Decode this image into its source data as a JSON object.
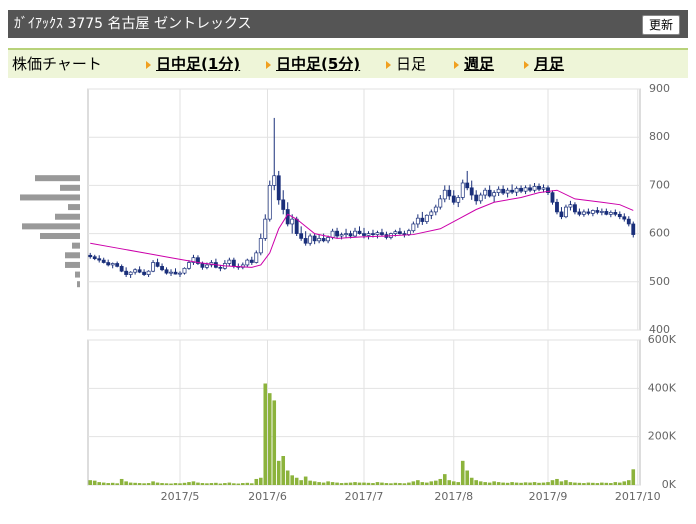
{
  "header": {
    "title": "ｶﾞｲｱｯｸｽ 3775 名古屋 ゼントレックス",
    "button": "更新"
  },
  "tabs": {
    "label": "株価チャート",
    "items": [
      "日中足(1分)",
      "日中足(5分)",
      "日足",
      "週足",
      "月足"
    ]
  },
  "chart_data": {
    "type": "candlestick",
    "up_color": "#ffffff",
    "down_color": "#1a2f7a",
    "ma_color": "#cc00aa",
    "volume_color": "#8cb33c",
    "profile_color": "#999999",
    "grid": true,
    "xlim": [
      -0.5,
      122.5
    ],
    "xticks": [
      {
        "value": 20,
        "label": "2017/5"
      },
      {
        "value": 39.5,
        "label": "2017/6"
      },
      {
        "value": 61,
        "label": "2017/7"
      },
      {
        "value": 81,
        "label": "2017/8"
      },
      {
        "value": 102,
        "label": "2017/9"
      },
      {
        "value": 122,
        "label": "2017/10"
      }
    ],
    "ylim": [
      400,
      900
    ],
    "yticks": [
      400,
      500,
      600,
      700,
      800,
      900
    ],
    "candles": [
      [
        555,
        560,
        548,
        552
      ],
      [
        552,
        556,
        545,
        548
      ],
      [
        548,
        555,
        540,
        545
      ],
      [
        545,
        550,
        538,
        540
      ],
      [
        540,
        546,
        532,
        535
      ],
      [
        535,
        540,
        528,
        538
      ],
      [
        538,
        542,
        530,
        532
      ],
      [
        532,
        536,
        520,
        522
      ],
      [
        522,
        530,
        510,
        515
      ],
      [
        515,
        522,
        508,
        520
      ],
      [
        520,
        528,
        515,
        525
      ],
      [
        525,
        532,
        518,
        520
      ],
      [
        520,
        526,
        512,
        515
      ],
      [
        515,
        524,
        510,
        522
      ],
      [
        522,
        545,
        520,
        540
      ],
      [
        540,
        548,
        530,
        532
      ],
      [
        532,
        538,
        522,
        525
      ],
      [
        525,
        530,
        515,
        518
      ],
      [
        518,
        526,
        512,
        520
      ],
      [
        520,
        528,
        515,
        516
      ],
      [
        516,
        522,
        510,
        518
      ],
      [
        518,
        530,
        515,
        528
      ],
      [
        528,
        545,
        525,
        540
      ],
      [
        540,
        556,
        535,
        550
      ],
      [
        550,
        555,
        535,
        538
      ],
      [
        538,
        542,
        525,
        530
      ],
      [
        530,
        540,
        526,
        535
      ],
      [
        535,
        545,
        530,
        540
      ],
      [
        540,
        548,
        528,
        530
      ],
      [
        530,
        535,
        522,
        528
      ],
      [
        528,
        545,
        525,
        538
      ],
      [
        538,
        550,
        532,
        545
      ],
      [
        545,
        550,
        528,
        532
      ],
      [
        532,
        538,
        525,
        530
      ],
      [
        530,
        540,
        526,
        535
      ],
      [
        535,
        548,
        530,
        545
      ],
      [
        545,
        552,
        535,
        540
      ],
      [
        540,
        565,
        538,
        560
      ],
      [
        560,
        600,
        555,
        590
      ],
      [
        590,
        640,
        585,
        630
      ],
      [
        630,
        710,
        625,
        700
      ],
      [
        700,
        840,
        690,
        720
      ],
      [
        720,
        730,
        660,
        670
      ],
      [
        670,
        690,
        640,
        650
      ],
      [
        650,
        665,
        615,
        620
      ],
      [
        620,
        640,
        600,
        630
      ],
      [
        630,
        635,
        595,
        600
      ],
      [
        600,
        615,
        585,
        590
      ],
      [
        590,
        605,
        575,
        580
      ],
      [
        580,
        600,
        575,
        595
      ],
      [
        595,
        600,
        578,
        585
      ],
      [
        585,
        598,
        580,
        590
      ],
      [
        590,
        600,
        582,
        585
      ],
      [
        585,
        596,
        580,
        592
      ],
      [
        592,
        610,
        588,
        605
      ],
      [
        605,
        612,
        590,
        595
      ],
      [
        595,
        602,
        588,
        598
      ],
      [
        598,
        610,
        592,
        600
      ],
      [
        600,
        606,
        590,
        595
      ],
      [
        595,
        612,
        592,
        605
      ],
      [
        605,
        615,
        598,
        600
      ],
      [
        600,
        612,
        590,
        596
      ],
      [
        596,
        605,
        588,
        600
      ],
      [
        600,
        608,
        592,
        598
      ],
      [
        598,
        606,
        590,
        602
      ],
      [
        602,
        610,
        595,
        598
      ],
      [
        598,
        604,
        588,
        592
      ],
      [
        592,
        602,
        588,
        600
      ],
      [
        600,
        608,
        594,
        604
      ],
      [
        604,
        612,
        598,
        600
      ],
      [
        600,
        606,
        592,
        598
      ],
      [
        598,
        610,
        595,
        606
      ],
      [
        606,
        625,
        602,
        620
      ],
      [
        620,
        640,
        612,
        632
      ],
      [
        632,
        645,
        618,
        625
      ],
      [
        625,
        640,
        620,
        638
      ],
      [
        638,
        650,
        630,
        645
      ],
      [
        645,
        660,
        638,
        655
      ],
      [
        655,
        680,
        650,
        672
      ],
      [
        672,
        700,
        665,
        690
      ],
      [
        690,
        700,
        670,
        678
      ],
      [
        678,
        690,
        660,
        665
      ],
      [
        665,
        680,
        655,
        675
      ],
      [
        675,
        712,
        670,
        705
      ],
      [
        705,
        730,
        690,
        695
      ],
      [
        695,
        710,
        670,
        680
      ],
      [
        680,
        690,
        660,
        668
      ],
      [
        668,
        685,
        662,
        680
      ],
      [
        680,
        695,
        672,
        690
      ],
      [
        690,
        700,
        675,
        678
      ],
      [
        678,
        690,
        665,
        685
      ],
      [
        685,
        698,
        678,
        692
      ],
      [
        692,
        700,
        680,
        684
      ],
      [
        684,
        695,
        675,
        690
      ],
      [
        690,
        702,
        682,
        686
      ],
      [
        686,
        698,
        678,
        694
      ],
      [
        694,
        700,
        684,
        688
      ],
      [
        688,
        700,
        682,
        695
      ],
      [
        695,
        702,
        686,
        690
      ],
      [
        690,
        705,
        685,
        698
      ],
      [
        698,
        704,
        688,
        692
      ],
      [
        692,
        702,
        685,
        695
      ],
      [
        695,
        700,
        680,
        685
      ],
      [
        685,
        690,
        660,
        665
      ],
      [
        665,
        672,
        640,
        645
      ],
      [
        645,
        655,
        630,
        635
      ],
      [
        635,
        660,
        632,
        655
      ],
      [
        655,
        668,
        648,
        660
      ],
      [
        660,
        665,
        640,
        645
      ],
      [
        645,
        652,
        636,
        640
      ],
      [
        640,
        650,
        635,
        645
      ],
      [
        645,
        652,
        638,
        642
      ],
      [
        642,
        650,
        636,
        648
      ],
      [
        648,
        655,
        640,
        644
      ],
      [
        644,
        652,
        638,
        646
      ],
      [
        646,
        652,
        638,
        640
      ],
      [
        640,
        648,
        634,
        644
      ],
      [
        644,
        650,
        636,
        640
      ],
      [
        640,
        646,
        630,
        635
      ],
      [
        635,
        642,
        625,
        630
      ],
      [
        630,
        636,
        615,
        620
      ],
      [
        620,
        625,
        592,
        598
      ]
    ],
    "ma": {
      "x": [
        0,
        6,
        12,
        18,
        24,
        30,
        36,
        38,
        40,
        42,
        44,
        46,
        50,
        55,
        60,
        66,
        72,
        78,
        82,
        86,
        90,
        96,
        100,
        104,
        108,
        114,
        118,
        121
      ],
      "values": [
        580,
        570,
        560,
        550,
        540,
        533,
        530,
        535,
        560,
        610,
        640,
        630,
        600,
        590,
        593,
        595,
        598,
        610,
        630,
        650,
        665,
        675,
        685,
        690,
        672,
        665,
        660,
        648
      ]
    },
    "volume": [
      20000,
      18000,
      12000,
      10000,
      8000,
      9000,
      7000,
      25000,
      15000,
      10000,
      9000,
      8000,
      7000,
      8000,
      15000,
      10000,
      8000,
      7000,
      6000,
      8000,
      7000,
      9000,
      12000,
      15000,
      10000,
      8000,
      7000,
      8000,
      9000,
      6000,
      8000,
      10000,
      7000,
      6000,
      8000,
      9000,
      7000,
      25000,
      30000,
      420000,
      380000,
      350000,
      100000,
      120000,
      60000,
      40000,
      30000,
      20000,
      35000,
      18000,
      15000,
      12000,
      10000,
      15000,
      12000,
      10000,
      8000,
      9000,
      10000,
      12000,
      10000,
      10000,
      9000,
      8000,
      12000,
      10000,
      8000,
      7000,
      9000,
      8000,
      7000,
      10000,
      15000,
      20000,
      12000,
      10000,
      15000,
      18000,
      25000,
      45000,
      20000,
      15000,
      12000,
      100000,
      60000,
      30000,
      20000,
      15000,
      12000,
      10000,
      15000,
      12000,
      10000,
      9000,
      12000,
      10000,
      9000,
      11000,
      10000,
      12000,
      9000,
      10000,
      12000,
      20000,
      25000,
      15000,
      20000,
      12000,
      10000,
      9000,
      8000,
      10000,
      9000,
      8000,
      10000,
      9000,
      8000,
      12000,
      10000,
      15000,
      20000,
      65000
    ],
    "vlim": [
      0,
      600000
    ],
    "vticks": [
      {
        "value": 0,
        "label": "0K"
      },
      {
        "value": 200000,
        "label": "200K"
      },
      {
        "value": 400000,
        "label": "400K"
      },
      {
        "value": 600000,
        "label": "600K"
      }
    ],
    "volume_profile": {
      "prices": [
        715,
        695,
        675,
        655,
        635,
        615,
        595,
        575,
        555,
        535,
        515,
        495
      ],
      "values": [
        45,
        20,
        60,
        12,
        25,
        58,
        40,
        8,
        15,
        15,
        5,
        3
      ]
    }
  }
}
